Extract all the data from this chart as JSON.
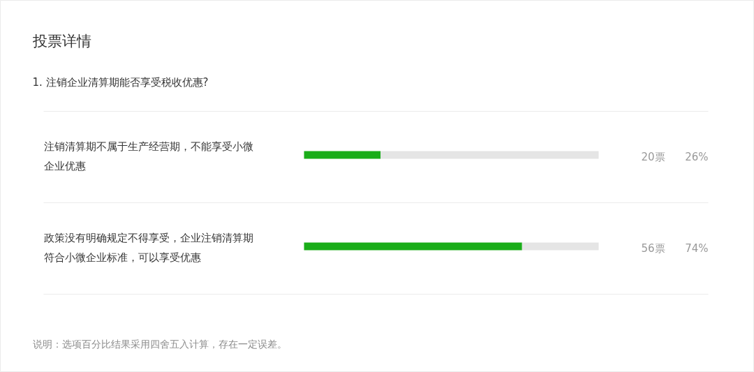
{
  "chart_data": {
    "type": "bar",
    "orientation": "horizontal",
    "stacked": true,
    "title": "投票详情",
    "subtitle": "1. 注销企业清算期能否享受税收优惠?",
    "categories": [
      "注销清算期不属于生产经营期，不能享受小微企业优惠",
      "政策没有明确规定不得享受，企业注销清算期符合小微企业标准，可以享受优惠"
    ],
    "xlim": [
      0,
      100
    ],
    "series": [
      {
        "color": "#1aad19",
        "values": [
          26,
          74
        ],
        "value_labels": [
          "26%",
          "74%"
        ]
      },
      {
        "color": "#e5e5e5",
        "values": [
          74,
          26
        ]
      }
    ],
    "annotations": [
      "20票",
      "56票",
      "说明：选项百分比结果采用四舍五入计算，存在一定误差。"
    ]
  }
}
